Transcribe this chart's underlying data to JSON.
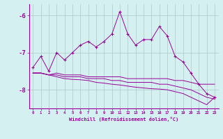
{
  "xlabel": "Windchill (Refroidissement éolien,°C)",
  "x": [
    0,
    1,
    2,
    3,
    4,
    5,
    6,
    7,
    8,
    9,
    10,
    11,
    12,
    13,
    14,
    15,
    16,
    17,
    18,
    19,
    20,
    21,
    22,
    23
  ],
  "line1": [
    -7.4,
    -7.1,
    -7.5,
    -7.0,
    -7.2,
    -7.0,
    -6.8,
    -6.7,
    -6.85,
    -6.7,
    -6.5,
    -5.9,
    -6.5,
    -6.8,
    -6.65,
    -6.65,
    -6.3,
    -6.55,
    -7.1,
    -7.25,
    -7.55,
    -7.85,
    -8.1,
    -8.2
  ],
  "line2": [
    -7.55,
    -7.55,
    -7.6,
    -7.55,
    -7.6,
    -7.6,
    -7.6,
    -7.65,
    -7.65,
    -7.65,
    -7.65,
    -7.65,
    -7.7,
    -7.7,
    -7.7,
    -7.7,
    -7.7,
    -7.7,
    -7.75,
    -7.75,
    -7.8,
    -7.85,
    -7.85,
    -7.85
  ],
  "line3": [
    -7.55,
    -7.55,
    -7.6,
    -7.6,
    -7.65,
    -7.65,
    -7.65,
    -7.7,
    -7.7,
    -7.7,
    -7.75,
    -7.75,
    -7.8,
    -7.8,
    -7.8,
    -7.8,
    -7.85,
    -7.85,
    -7.9,
    -7.95,
    -8.0,
    -8.1,
    -8.2,
    -8.25
  ],
  "line4": [
    -7.55,
    -7.55,
    -7.6,
    -7.65,
    -7.7,
    -7.72,
    -7.73,
    -7.75,
    -7.8,
    -7.82,
    -7.85,
    -7.87,
    -7.9,
    -7.93,
    -7.95,
    -7.97,
    -7.98,
    -8.0,
    -8.05,
    -8.1,
    -8.2,
    -8.3,
    -8.4,
    -8.2
  ],
  "line_color": "#990099",
  "bg_color": "#d4f0f0",
  "grid_color": "#b0c8c8",
  "ylim": [
    -8.5,
    -5.7
  ],
  "yticks": [
    -8,
    -7,
    -6
  ],
  "xlim": [
    -0.5,
    23.5
  ]
}
